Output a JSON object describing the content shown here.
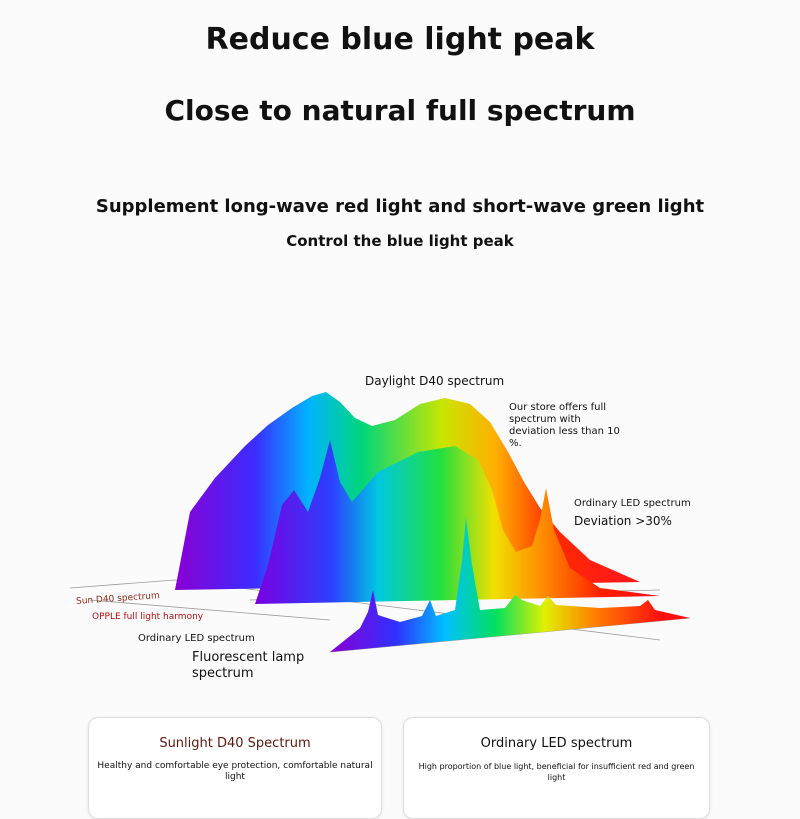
{
  "header": {
    "title": "Reduce blue light peak",
    "subtitle": "Close to natural full spectrum"
  },
  "intro": {
    "line1": "Supplement long-wave red light and short-wave green light",
    "line2": "Control the blue light peak"
  },
  "diagram": {
    "daylight_label": "Daylight D40 spectrum",
    "store_note": [
      "Our store offers full",
      "spectrum with",
      "deviation less than 10",
      "%."
    ],
    "led_label": "Ordinary LED spectrum",
    "led_deviation": "Deviation >30%",
    "axis_labels": [
      "Sun D40 spectrum",
      "OPPLE full light harmony",
      "Ordinary LED spectrum"
    ],
    "fluorescent_label": [
      "Fluorescent lamp",
      "spectrum"
    ]
  },
  "cards": [
    {
      "title": "Sunlight D40 Spectrum",
      "text": "Healthy and comfortable eye protection, comfortable natural light"
    },
    {
      "title": "Ordinary LED spectrum",
      "text": "High proportion of blue light, beneficial for insufficient red and green light"
    }
  ]
}
